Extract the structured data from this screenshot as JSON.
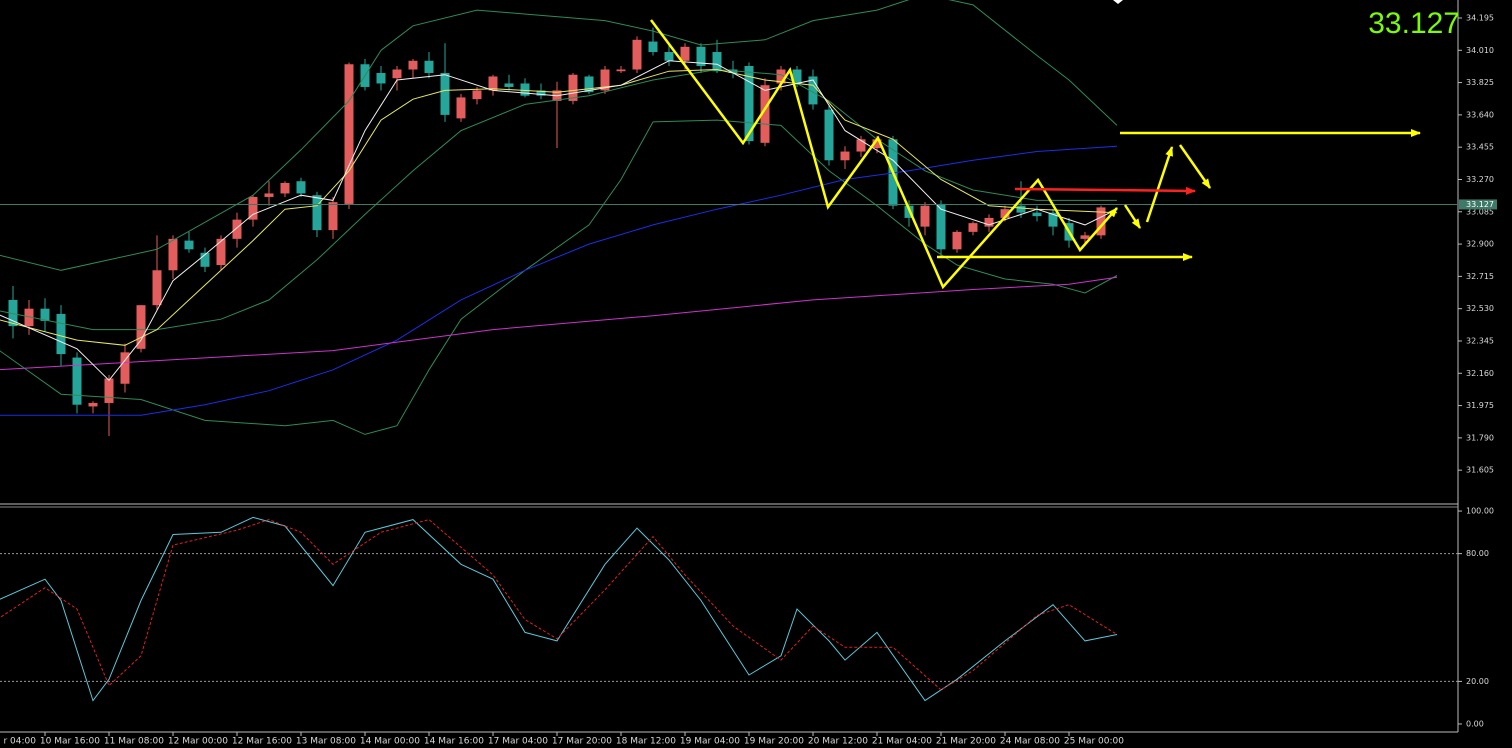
{
  "chart_data": [
    {
      "type": "candlestick",
      "price": 33.127,
      "up_color": "#e35d5d",
      "down_color": "#26a69a",
      "ylim": [
        31.417,
        34.298
      ],
      "yticks": [
        34.195,
        {
          "value": 34.01,
          "label": "34.010"
        },
        33.825,
        {
          "value": 33.64,
          "label": "33.640"
        },
        33.455,
        {
          "value": 33.27,
          "label": "33.270"
        },
        33.085,
        {
          "value": 32.9,
          "label": "32.900"
        },
        32.715,
        {
          "value": 32.53,
          "label": "32.530"
        },
        32.345,
        {
          "value": 32.16,
          "label": "32.160"
        },
        31.975,
        {
          "value": 31.79,
          "label": "31.790"
        },
        31.605
      ],
      "xticks": [
        {
          "value": -2,
          "label": "r 04:00"
        },
        {
          "value": 2,
          "label": "10 Mar 16:00"
        },
        {
          "value": 6,
          "label": "11 Mar 08:00"
        },
        {
          "value": 10,
          "label": "12 Mar 00:00"
        },
        {
          "value": 14,
          "label": "12 Mar 16:00"
        },
        {
          "value": 18,
          "label": "13 Mar 08:00"
        },
        {
          "value": 22,
          "label": "14 Mar 00:00"
        },
        {
          "value": 26,
          "label": "14 Mar 16:00"
        },
        {
          "value": 30,
          "label": "17 Mar 04:00"
        },
        {
          "value": 34,
          "label": "17 Mar 20:00"
        },
        {
          "value": 38,
          "label": "18 Mar 12:00"
        },
        {
          "value": 42,
          "label": "19 Mar 04:00"
        },
        {
          "value": 46,
          "label": "19 Mar 20:00"
        },
        {
          "value": 50,
          "label": "20 Mar 12:00"
        },
        {
          "value": 54,
          "label": "21 Mar 04:00"
        },
        {
          "value": 58,
          "label": "21 Mar 20:00"
        },
        {
          "value": 62,
          "label": "24 Mar 08:00"
        },
        {
          "value": 66,
          "label": "25 Mar 00:00"
        }
      ],
      "open": [
        32.58,
        32.43,
        32.53,
        32.5,
        32.25,
        31.97,
        31.99,
        32.1,
        32.3,
        32.55,
        32.75,
        32.92,
        32.85,
        32.78,
        32.93,
        33.04,
        33.17,
        33.19,
        33.26,
        33.18,
        32.98,
        33.13,
        33.93,
        33.88,
        33.85,
        33.9,
        33.95,
        33.88,
        33.62,
        33.73,
        33.78,
        33.82,
        33.82,
        33.78,
        33.72,
        33.72,
        33.86,
        33.78,
        33.89,
        33.9,
        34.06,
        34.0,
        33.95,
        34.03,
        34.0,
        33.9,
        33.92,
        33.48,
        33.82,
        33.9,
        33.86,
        33.67,
        33.38,
        33.43,
        33.45,
        33.5,
        33.12,
        33.0,
        33.13,
        32.87,
        32.97,
        33.0,
        33.05,
        33.12,
        33.08,
        33.08,
        33.02,
        32.93,
        32.95
      ],
      "high": [
        32.66,
        32.58,
        32.59,
        32.55,
        32.28,
        32.0,
        32.15,
        32.33,
        32.55,
        32.95,
        32.95,
        32.97,
        32.88,
        32.95,
        33.08,
        33.18,
        33.26,
        33.26,
        33.28,
        33.2,
        33.17,
        33.94,
        33.96,
        33.92,
        33.92,
        33.96,
        34.0,
        34.05,
        33.76,
        33.8,
        33.87,
        33.87,
        33.85,
        33.82,
        33.83,
        33.88,
        33.87,
        33.92,
        33.92,
        34.09,
        34.14,
        34.05,
        34.05,
        34.05,
        34.07,
        33.95,
        33.94,
        33.85,
        33.92,
        33.92,
        33.9,
        33.7,
        33.46,
        33.52,
        33.52,
        33.52,
        33.15,
        33.14,
        33.15,
        32.98,
        33.03,
        33.07,
        33.12,
        33.26,
        33.12,
        33.1,
        33.05,
        32.97,
        33.12
      ],
      "low": [
        32.36,
        32.38,
        32.4,
        32.2,
        31.93,
        31.93,
        31.8,
        32.05,
        32.28,
        32.52,
        32.7,
        32.85,
        32.74,
        32.75,
        32.88,
        33.0,
        33.12,
        33.17,
        33.17,
        32.94,
        32.93,
        33.1,
        33.78,
        33.78,
        33.78,
        33.85,
        33.85,
        33.6,
        33.6,
        33.7,
        33.75,
        33.78,
        33.74,
        33.73,
        33.45,
        33.7,
        33.76,
        33.76,
        33.88,
        33.88,
        33.98,
        33.92,
        33.9,
        33.88,
        33.88,
        33.85,
        33.47,
        33.46,
        33.78,
        33.8,
        33.67,
        33.35,
        33.33,
        33.4,
        33.42,
        33.1,
        33.0,
        32.95,
        32.82,
        32.85,
        32.95,
        32.97,
        33.03,
        33.05,
        33.03,
        32.95,
        32.88,
        32.9,
        32.93
      ],
      "close": [
        32.43,
        32.53,
        32.46,
        32.27,
        31.98,
        31.99,
        32.13,
        32.28,
        32.55,
        32.75,
        32.93,
        32.87,
        32.77,
        32.93,
        33.04,
        33.17,
        33.19,
        33.25,
        33.19,
        32.98,
        33.14,
        33.93,
        33.8,
        33.82,
        33.9,
        33.95,
        33.88,
        33.64,
        33.74,
        33.78,
        33.86,
        33.8,
        33.75,
        33.75,
        33.78,
        33.87,
        33.77,
        33.9,
        33.9,
        34.07,
        34.0,
        33.95,
        34.03,
        33.92,
        33.89,
        33.88,
        33.49,
        33.81,
        33.9,
        33.82,
        33.7,
        33.38,
        33.43,
        33.5,
        33.5,
        33.12,
        33.05,
        33.12,
        32.87,
        32.97,
        33.02,
        33.05,
        33.1,
        33.08,
        33.06,
        33.0,
        32.92,
        32.95,
        33.11
      ],
      "overlays": [
        {
          "color": "#2e8b57",
          "x": [
            -1,
            3,
            9,
            15,
            18,
            21,
            23,
            25,
            29,
            33,
            37,
            40,
            43,
            47,
            50,
            54,
            57,
            60,
            64,
            66,
            69
          ],
          "values": [
            32.84,
            32.75,
            32.87,
            33.18,
            33.44,
            33.72,
            34.01,
            34.15,
            34.24,
            34.21,
            34.18,
            34.12,
            34.04,
            34.07,
            34.18,
            34.24,
            34.33,
            34.27,
            33.98,
            33.84,
            33.58
          ]
        },
        {
          "color": "#2e8b57",
          "x": [
            -1,
            5,
            9,
            13,
            16,
            19,
            22,
            25,
            28,
            32,
            36,
            40,
            44,
            48,
            51,
            54,
            57,
            60,
            64,
            69
          ],
          "values": [
            32.52,
            32.41,
            32.41,
            32.47,
            32.58,
            32.81,
            33.07,
            33.32,
            33.55,
            33.7,
            33.75,
            33.84,
            33.9,
            33.87,
            33.72,
            33.5,
            33.32,
            33.21,
            33.15,
            33.15
          ]
        },
        {
          "color": "#2e8b57",
          "x": [
            -1,
            3,
            8,
            12,
            17,
            20,
            22,
            24,
            26,
            28,
            32,
            36,
            38,
            40,
            44,
            48,
            51,
            54,
            57,
            59,
            62,
            65,
            67,
            69
          ],
          "values": [
            32.3,
            32.04,
            32.01,
            31.89,
            31.86,
            31.89,
            31.81,
            31.86,
            32.18,
            32.47,
            32.75,
            33.01,
            33.27,
            33.6,
            33.61,
            33.58,
            33.32,
            33.12,
            32.9,
            32.78,
            32.7,
            32.67,
            32.62,
            32.72
          ]
        },
        {
          "color": "#1c2ee8",
          "x": [
            -1,
            8,
            12,
            16,
            20,
            24,
            28,
            32,
            36,
            40,
            44,
            48,
            52,
            56,
            60,
            64,
            69
          ],
          "values": [
            31.92,
            31.92,
            31.98,
            32.06,
            32.18,
            32.35,
            32.58,
            32.75,
            32.9,
            33.01,
            33.1,
            33.18,
            33.27,
            33.32,
            33.38,
            33.43,
            33.46
          ]
        },
        {
          "color": "#cc33cc",
          "x": [
            -1,
            20,
            30,
            40,
            50,
            60,
            66,
            69
          ],
          "values": [
            32.18,
            32.29,
            32.41,
            32.49,
            32.58,
            32.64,
            32.67,
            32.71
          ]
        },
        {
          "color": "#e8e860",
          "x": [
            -1,
            4,
            7,
            9,
            11,
            13,
            15,
            17,
            19,
            21,
            23,
            25,
            27,
            30,
            34,
            38,
            41,
            44,
            47,
            50,
            52,
            55,
            58,
            61,
            64,
            69
          ],
          "values": [
            32.47,
            32.35,
            32.32,
            32.41,
            32.58,
            32.75,
            32.92,
            33.1,
            33.12,
            33.32,
            33.61,
            33.73,
            33.78,
            33.79,
            33.77,
            33.81,
            33.89,
            33.9,
            33.84,
            33.81,
            33.61,
            33.5,
            33.27,
            33.12,
            33.1,
            33.08
          ]
        },
        {
          "color": "#f0f0f0",
          "x": [
            -1,
            4,
            6,
            8,
            10,
            12,
            15,
            18,
            20,
            22,
            24,
            27,
            30,
            34,
            38,
            41,
            44,
            47,
            50,
            52,
            55,
            58,
            61,
            64,
            67,
            69
          ],
          "values": [
            32.5,
            32.3,
            32.12,
            32.35,
            32.69,
            32.84,
            33.07,
            33.18,
            33.15,
            33.55,
            33.84,
            33.87,
            33.78,
            33.75,
            33.81,
            33.95,
            33.93,
            33.78,
            33.84,
            33.55,
            33.38,
            33.1,
            33.01,
            33.1,
            33.01,
            33.1
          ]
        }
      ]
    },
    {
      "type": "line",
      "ylim": [
        -3.3,
        101.9
      ],
      "yticks": [
        {
          "value": 100,
          "label": "100.00"
        },
        {
          "value": 80,
          "label": "80.00"
        },
        {
          "value": 20,
          "label": "20.00"
        },
        {
          "value": 0,
          "label": "0.00"
        }
      ],
      "levels": [
        80,
        20
      ],
      "series": [
        {
          "color": "#5bc8d8",
          "dash": false,
          "x": [
            -1,
            2,
            3,
            5,
            6,
            8,
            10,
            13,
            15,
            17,
            20,
            22,
            25,
            28,
            30,
            32,
            34,
            37,
            39,
            41,
            43,
            46,
            48,
            49,
            51,
            52,
            54,
            57,
            59,
            62,
            65,
            67,
            69
          ],
          "values": [
            58,
            68,
            58,
            11,
            21,
            58,
            89,
            90,
            97,
            93,
            65,
            90,
            96,
            75,
            68,
            43,
            39,
            75,
            92,
            77,
            58,
            23,
            32,
            54,
            39,
            30,
            43,
            11,
            21,
            39,
            56,
            39,
            42
          ]
        },
        {
          "color": "#e02020",
          "dash": true,
          "x": [
            -1,
            2,
            4,
            6,
            8,
            10,
            14,
            16,
            18,
            20,
            23,
            26,
            30,
            32,
            34,
            37,
            40,
            42,
            45,
            48,
            50,
            52,
            55,
            58,
            60,
            64,
            66,
            69
          ],
          "values": [
            49,
            64,
            54,
            18,
            32,
            84,
            91,
            96,
            90,
            75,
            90,
            96,
            70,
            49,
            40,
            63,
            88,
            70,
            46,
            30,
            46,
            36,
            36,
            16,
            25,
            51,
            56,
            42
          ]
        }
      ]
    }
  ]
}
